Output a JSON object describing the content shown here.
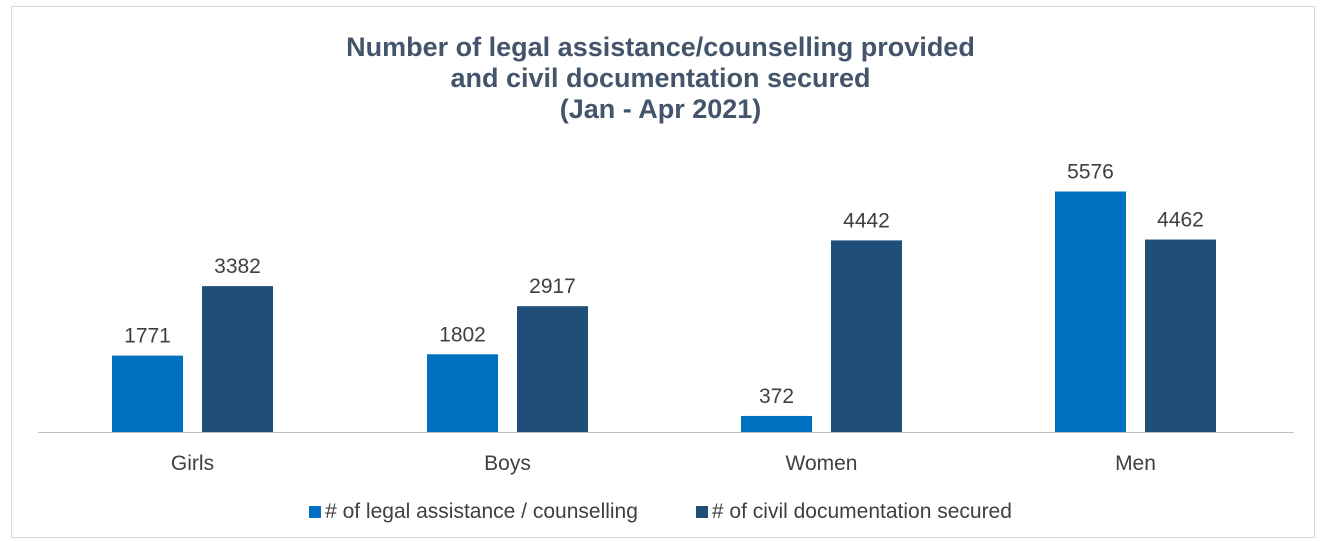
{
  "chart_data": {
    "type": "bar",
    "title_lines": [
      "Number of legal assistance/counselling provided",
      "and civil documentation secured",
      "(Jan - Apr 2021)"
    ],
    "categories": [
      "Girls",
      "Boys",
      "Women",
      "Men"
    ],
    "series": [
      {
        "name": "# of legal assistance / counselling",
        "values": [
          1771,
          1802,
          372,
          5576
        ],
        "color": "#0070c0"
      },
      {
        "name": "# of civil documentation secured",
        "values": [
          3382,
          2917,
          4442,
          4462
        ],
        "color": "#1f4e79"
      }
    ],
    "ylim": [
      0,
      6000
    ],
    "grid": false,
    "data_labels": true,
    "legend_position": "bottom",
    "xlabel": "",
    "ylabel": ""
  }
}
